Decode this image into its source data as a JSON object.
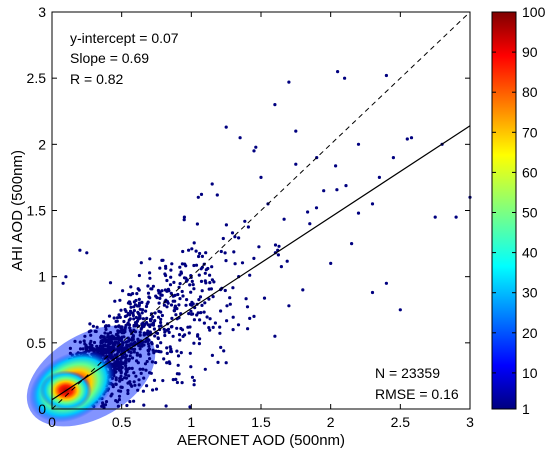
{
  "chart_data": {
    "type": "scatter",
    "title": "",
    "xlabel": "AERONET AOD (500nm)",
    "ylabel": "AHI AOD (500nm)",
    "xlim": [
      0,
      3
    ],
    "ylim": [
      0,
      3
    ],
    "x_ticks": [
      "0",
      "0.5",
      "1",
      "1.5",
      "2",
      "2.5",
      "3"
    ],
    "y_ticks": [
      "0",
      "0.5",
      "1",
      "1.5",
      "2",
      "2.5",
      "3"
    ],
    "grid": false,
    "point_color_encoding": "density",
    "annotations_top_left": [
      "y-intercept = 0.07",
      "Slope = 0.69",
      "R = 0.82"
    ],
    "annotations_bottom_right": [
      "N = 23359",
      "RMSE = 0.16"
    ],
    "regression_line": {
      "intercept": 0.07,
      "slope": 0.69,
      "style": "solid"
    },
    "one_to_one_line": {
      "intercept": 0,
      "slope": 1,
      "style": "dashed"
    },
    "colorbar": {
      "min": 1,
      "max": 100,
      "ticks": [
        "1",
        "10",
        "20",
        "30",
        "40",
        "50",
        "60",
        "70",
        "80",
        "90",
        "100"
      ],
      "colormap": "jet"
    },
    "density_hotspot": {
      "x": 0.1,
      "y": 0.14
    },
    "outlier_points": [
      [
        2.05,
        2.55
      ],
      [
        2.1,
        2.5
      ],
      [
        2.4,
        2.52
      ],
      [
        1.7,
        2.47
      ],
      [
        1.6,
        2.3
      ],
      [
        1.75,
        2.1
      ],
      [
        2.55,
        2.04
      ],
      [
        2.58,
        2.05
      ],
      [
        2.8,
        2.0
      ],
      [
        2.35,
        1.75
      ],
      [
        2.45,
        1.9
      ],
      [
        2.2,
        2.0
      ],
      [
        3.0,
        1.6
      ],
      [
        2.9,
        1.45
      ],
      [
        2.75,
        1.45
      ],
      [
        2.2,
        1.48
      ],
      [
        2.3,
        1.55
      ],
      [
        1.75,
        1.85
      ],
      [
        1.95,
        1.65
      ],
      [
        1.45,
        1.95
      ],
      [
        1.25,
        2.13
      ],
      [
        1.35,
        2.05
      ],
      [
        1.5,
        1.75
      ],
      [
        1.85,
        1.4
      ],
      [
        2.4,
        0.95
      ],
      [
        2.5,
        0.75
      ],
      [
        2.3,
        0.88
      ],
      [
        2.0,
        1.1
      ],
      [
        1.8,
        0.9
      ],
      [
        2.15,
        1.25
      ],
      [
        1.62,
        1.2
      ],
      [
        1.9,
        1.9
      ],
      [
        1.55,
        1.55
      ],
      [
        1.15,
        1.7
      ],
      [
        1.05,
        1.6
      ],
      [
        0.95,
        1.45
      ],
      [
        1.3,
        0.6
      ],
      [
        1.45,
        0.7
      ],
      [
        1.6,
        0.55
      ],
      [
        1.7,
        0.78
      ],
      [
        0.2,
        1.2
      ],
      [
        0.25,
        1.18
      ],
      [
        0.1,
        1.0
      ],
      [
        0.08,
        0.95
      ],
      [
        1.1,
        0.3
      ],
      [
        1.25,
        0.35
      ],
      [
        0.9,
        0.2
      ],
      [
        0.75,
        0.15
      ]
    ]
  },
  "colors": {
    "density_low": "#00007f",
    "density_high": "#7f0000",
    "axes": "#000000"
  }
}
